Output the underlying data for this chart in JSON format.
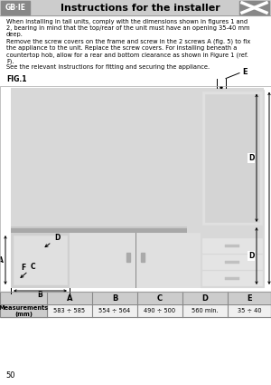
{
  "title": "Instructions for the installer",
  "gb_ie_label": "GB·IE",
  "header_bg": "#cccccc",
  "body_text_lines": [
    "When installing in tall units, comply with the dimensions shown in figures 1 and",
    "2, bearing in mind that the top/rear of the unit must have an opening 35-40 mm",
    "deep.",
    "Remove the screw covers on the frame and screw in the 2 screws A (fig. 5) to fix",
    "the appliance to the unit. Replace the screw covers. For installing beneath a",
    "countertop hob, allow for a rear and bottom clearance as shown in Figure 1 (ref.",
    "F).",
    "See the relevant instructions for fitting and securing the appliance."
  ],
  "fig_label": "FIG.1",
  "table_headers": [
    "",
    "A",
    "B",
    "C",
    "D",
    "E"
  ],
  "table_row_label": "Measurements\n(mm)",
  "table_values": [
    "583 ÷ 585",
    "554 ÷ 564",
    "490 ÷ 500",
    "560 min.",
    "35 ÷ 40"
  ],
  "page_number": "50",
  "table_header_bg": "#cccccc",
  "table_row_bg": "#f0f0f0",
  "table_border": "#888888",
  "white": "#ffffff",
  "black": "#000000",
  "light_gray": "#e8e8e8",
  "mid_gray": "#c0c0c0",
  "dark_gray": "#888888"
}
